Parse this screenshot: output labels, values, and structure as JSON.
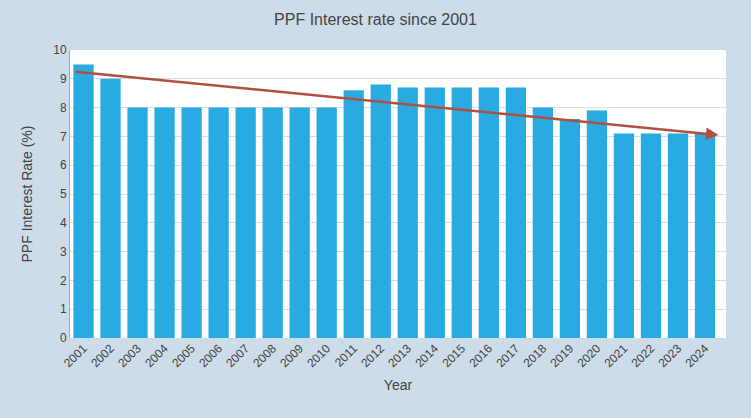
{
  "chart_data": {
    "type": "bar",
    "title": "PPF Interest rate since 2001",
    "x_label": "Year",
    "y_label": "PPF Interest Rate (%)",
    "categories": [
      "2001",
      "2002",
      "2003",
      "2004",
      "2005",
      "2006",
      "2007",
      "2008",
      "2009",
      "2010",
      "2011",
      "2012",
      "2013",
      "2014",
      "2015",
      "2016",
      "2017",
      "2018",
      "2019",
      "2020",
      "2021",
      "2022",
      "2023",
      "2024"
    ],
    "values": [
      9.5,
      9.0,
      8.0,
      8.0,
      8.0,
      8.0,
      8.0,
      8.0,
      8.0,
      8.0,
      8.6,
      8.8,
      8.7,
      8.7,
      8.7,
      8.7,
      8.7,
      8.0,
      7.6,
      7.9,
      7.1,
      7.1,
      7.1,
      7.1
    ],
    "color": "#29ABE2",
    "trend_line": {
      "start": 9.25,
      "end": 7.05,
      "color": "#B05040"
    },
    "ylim": [
      0,
      10
    ],
    "yticks": [
      0,
      1,
      2,
      3,
      4,
      5,
      6,
      7,
      8,
      9,
      10
    ],
    "grid": true
  }
}
